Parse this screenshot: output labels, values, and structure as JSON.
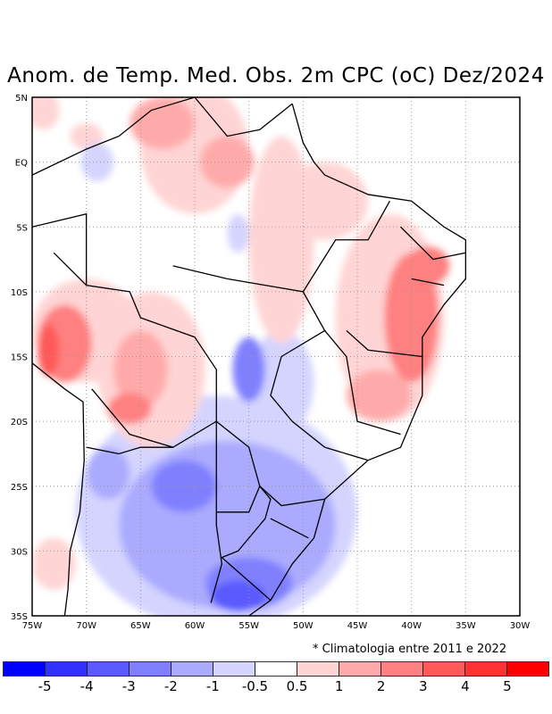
{
  "title": "Anom. de Temp. Med. Obs. 2m CPC (oC) Dez/2024",
  "note": "* Climatologia entre 2011 e 2022",
  "lat_labels": [
    "5N",
    "EQ",
    "5S",
    "10S",
    "15S",
    "20S",
    "25S",
    "30S",
    "35S"
  ],
  "lon_labels": [
    "75W",
    "70W",
    "65W",
    "60W",
    "55W",
    "50W",
    "45W",
    "40W",
    "35W",
    "30W"
  ],
  "colorbar": {
    "colors": [
      "#0000ff",
      "#3232ff",
      "#5a5aff",
      "#8080ff",
      "#aaaaff",
      "#d4d4ff",
      "#ffffff",
      "#ffd4d4",
      "#ffaaaa",
      "#ff8080",
      "#ff5a5a",
      "#ff3232",
      "#ff0000"
    ],
    "labels": [
      "-5",
      "-4",
      "-3",
      "-2",
      "-1",
      "-0.5",
      "0.5",
      "1",
      "2",
      "3",
      "4",
      "5"
    ]
  }
}
